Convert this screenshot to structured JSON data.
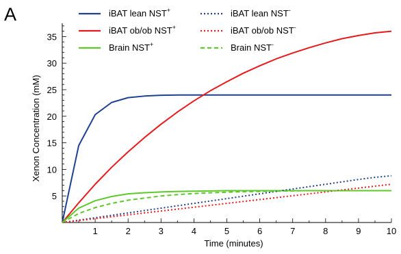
{
  "panel_label": "A",
  "chart_data": {
    "type": "line",
    "xlabel": "Time (minutes)",
    "ylabel": "Xenon Concentration (mM)",
    "xlim": [
      0,
      10
    ],
    "ylim": [
      0,
      37.5
    ],
    "x_ticks": [
      1,
      2,
      3,
      4,
      5,
      6,
      7,
      8,
      9,
      10
    ],
    "y_ticks": [
      5,
      10,
      15,
      20,
      25,
      30,
      35
    ],
    "grid": false,
    "legend_position": "top-left, two columns",
    "x": [
      0,
      0.5,
      1,
      1.5,
      2,
      2.5,
      3,
      3.5,
      4,
      4.5,
      5,
      5.5,
      6,
      6.5,
      7,
      7.5,
      8,
      8.5,
      9,
      9.5,
      10
    ],
    "series": [
      {
        "name": "iBAT lean NST",
        "sup": "+",
        "color": "#1f3f8f",
        "dash": "solid",
        "values": [
          0,
          14.5,
          20.3,
          22.6,
          23.5,
          23.8,
          23.95,
          24.0,
          24.0,
          24.0,
          24.0,
          24.0,
          24.0,
          24.0,
          24.0,
          24.0,
          24.0,
          24.0,
          24.0,
          24.0,
          24.0
        ]
      },
      {
        "name": "iBAT ob/ob NST",
        "sup": "+",
        "color": "#e8191c",
        "dash": "solid",
        "values": [
          0,
          3.7,
          7.2,
          10.4,
          13.3,
          16.0,
          18.5,
          20.8,
          22.9,
          24.8,
          26.5,
          28.1,
          29.5,
          30.8,
          31.9,
          32.9,
          33.8,
          34.6,
          35.2,
          35.7,
          36.0
        ]
      },
      {
        "name": "Brain  NST",
        "sup": "+",
        "color": "#5ec82a",
        "dash": "solid",
        "values": [
          0,
          2.7,
          4.1,
          4.9,
          5.4,
          5.6,
          5.75,
          5.85,
          5.9,
          5.95,
          6.0,
          6.0,
          6.0,
          6.0,
          6.0,
          6.0,
          6.0,
          6.0,
          6.0,
          6.0,
          6.0
        ]
      },
      {
        "name": "iBAT lean NST",
        "sup": "-",
        "color": "#1f3f8f",
        "dash": "dotted",
        "values": [
          0,
          0.45,
          0.9,
          1.35,
          1.8,
          2.25,
          2.7,
          3.15,
          3.6,
          4.05,
          4.5,
          4.95,
          5.4,
          5.85,
          6.3,
          6.75,
          7.2,
          7.65,
          8.1,
          8.5,
          8.8
        ]
      },
      {
        "name": "iBAT ob/ob NST",
        "sup": "-",
        "color": "#e8191c",
        "dash": "dotted",
        "values": [
          0,
          0.36,
          0.72,
          1.08,
          1.44,
          1.8,
          2.16,
          2.52,
          2.88,
          3.24,
          3.6,
          3.96,
          4.32,
          4.68,
          5.04,
          5.4,
          5.76,
          6.12,
          6.48,
          6.84,
          7.2
        ]
      },
      {
        "name": "Brain NST",
        "sup": "-",
        "color": "#5ec82a",
        "dash": "dashed",
        "values": [
          0,
          1.7,
          2.8,
          3.6,
          4.2,
          4.6,
          5.0,
          5.25,
          5.45,
          5.6,
          5.7,
          5.8,
          5.85,
          5.9,
          5.95,
          6.0,
          6.0,
          6.0,
          6.0,
          6.0,
          6.0
        ]
      }
    ]
  }
}
